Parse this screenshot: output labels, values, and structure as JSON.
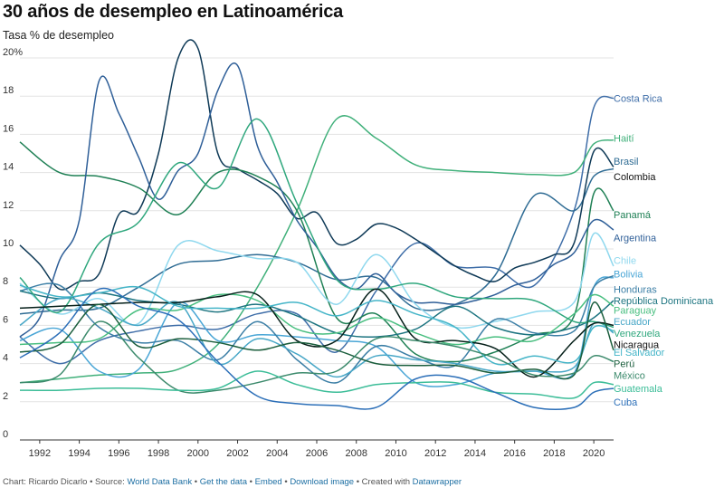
{
  "title": "30 años de desempleo en Latinoamérica",
  "subtitle": "Tasa % de desempleo",
  "footer": {
    "prefix": "Chart: Ricardo Dicarlo • Source: ",
    "source_link": "World Data Bank",
    "sep1": " • ",
    "get_data": "Get the data",
    "sep2": " • ",
    "embed": "Embed",
    "sep3": " • ",
    "download": "Download image",
    "sep4": " • Created with ",
    "tool": "Datawrapper"
  },
  "chart_data": {
    "type": "line",
    "xlim": [
      1991,
      2021
    ],
    "ylim": [
      0,
      20
    ],
    "xticks": [
      "1992",
      "1994",
      "1996",
      "1998",
      "2000",
      "2002",
      "2004",
      "2006",
      "2008",
      "2010",
      "2012",
      "2014",
      "2016",
      "2018",
      "2020"
    ],
    "yticks": [
      "0",
      "2",
      "4",
      "6",
      "8",
      "10",
      "12",
      "14",
      "16",
      "18",
      "20%"
    ],
    "grid": true,
    "legend": "inline-right",
    "series": [
      {
        "name": "Costa Rica",
        "color": "#3f6ea8",
        "label_y": 17.9,
        "x": [
          1991,
          1993,
          1995,
          1997,
          1999,
          2001,
          2003,
          2005,
          2007,
          2009,
          2011,
          2013,
          2015,
          2017,
          2019,
          2020,
          2021
        ],
        "y": [
          5.4,
          4.0,
          5.2,
          5.7,
          6.0,
          5.8,
          6.6,
          6.6,
          4.6,
          7.8,
          10.3,
          9.1,
          9.0,
          8.1,
          12.0,
          17.4,
          17.9
        ]
      },
      {
        "name": "Haití",
        "color": "#40b07a",
        "label_y": 15.8,
        "x": [
          1991,
          1993,
          1995,
          1997,
          1999,
          2001,
          2003,
          2005,
          2007,
          2009,
          2011,
          2013,
          2015,
          2017,
          2019,
          2020,
          2021
        ],
        "y": [
          3.0,
          3.2,
          3.4,
          3.5,
          3.7,
          5.0,
          8.0,
          12.0,
          16.8,
          15.8,
          14.4,
          14.1,
          14.0,
          13.9,
          14.0,
          15.5,
          15.7
        ]
      },
      {
        "name": "Brasil",
        "color": "#2f6c94",
        "label_y": 14.6,
        "x": [
          1991,
          1993,
          1995,
          1997,
          1999,
          2001,
          2003,
          2005,
          2007,
          2009,
          2011,
          2013,
          2015,
          2017,
          2019,
          2020,
          2021
        ],
        "y": [
          6.6,
          6.8,
          6.9,
          8.0,
          9.2,
          9.4,
          9.7,
          9.3,
          8.4,
          8.5,
          6.9,
          7.1,
          8.6,
          12.8,
          12.0,
          13.8,
          14.2
        ]
      },
      {
        "name": "Colombia",
        "color": "#0f3a57",
        "label_y": 13.8,
        "x": [
          1991,
          1992,
          1993,
          1994,
          1995,
          1996,
          1997,
          1998,
          1999,
          2000,
          2001,
          2002,
          2003,
          2004,
          2005,
          2006,
          2007,
          2008,
          2009,
          2010,
          2011,
          2012,
          2013,
          2014,
          2015,
          2016,
          2017,
          2018,
          2019,
          2020,
          2021
        ],
        "y": [
          10.2,
          9.2,
          7.9,
          8.3,
          8.7,
          11.8,
          12.0,
          15.0,
          20.0,
          20.5,
          15.0,
          14.2,
          13.6,
          12.9,
          11.6,
          11.9,
          10.3,
          10.5,
          11.3,
          11.1,
          10.5,
          9.8,
          9.1,
          8.6,
          8.3,
          9.0,
          9.3,
          9.7,
          10.3,
          15.1,
          14.3
        ]
      },
      {
        "name": "Panamá",
        "color": "#1f8055",
        "label_y": 11.8,
        "x": [
          1991,
          1993,
          1995,
          1997,
          1999,
          2001,
          2003,
          2005,
          2007,
          2009,
          2011,
          2013,
          2015,
          2017,
          2019,
          2020,
          2021
        ],
        "y": [
          15.6,
          14.0,
          13.8,
          13.2,
          11.8,
          14.0,
          13.8,
          12.0,
          6.4,
          6.6,
          4.5,
          4.1,
          4.6,
          5.5,
          6.5,
          12.9,
          12.0
        ]
      },
      {
        "name": "Argentina",
        "color": "#2f5f98",
        "label_y": 10.6,
        "x": [
          1991,
          1992,
          1993,
          1994,
          1995,
          1996,
          1997,
          1998,
          1999,
          2000,
          2001,
          2002,
          2003,
          2004,
          2005,
          2006,
          2007,
          2008,
          2009,
          2010,
          2011,
          2012,
          2013,
          2014,
          2015,
          2016,
          2017,
          2018,
          2019,
          2020,
          2021
        ],
        "y": [
          5.4,
          6.4,
          9.4,
          11.5,
          18.8,
          17.1,
          14.8,
          12.6,
          14.1,
          15.0,
          18.3,
          19.6,
          15.4,
          13.5,
          11.5,
          10.1,
          8.5,
          7.9,
          8.7,
          7.7,
          7.2,
          7.2,
          7.1,
          7.3,
          7.6,
          8.1,
          8.4,
          9.2,
          9.8,
          11.5,
          11.0
        ]
      },
      {
        "name": "Chile",
        "color": "#8fd8ee",
        "label_y": 9.4,
        "x": [
          1991,
          1993,
          1995,
          1997,
          1999,
          2001,
          2003,
          2005,
          2007,
          2009,
          2011,
          2013,
          2015,
          2017,
          2019,
          2020,
          2021
        ],
        "y": [
          8.2,
          6.6,
          7.4,
          6.1,
          10.2,
          9.9,
          9.5,
          9.3,
          7.1,
          9.7,
          7.1,
          5.9,
          6.2,
          6.7,
          7.2,
          10.8,
          9.1
        ]
      },
      {
        "name": "Bolivia",
        "color": "#4aa6d6",
        "label_y": 8.7,
        "x": [
          1991,
          1993,
          1995,
          1997,
          1999,
          2001,
          2003,
          2005,
          2007,
          2009,
          2011,
          2013,
          2015,
          2017,
          2019,
          2020,
          2021
        ],
        "y": [
          5.2,
          5.8,
          3.6,
          3.7,
          7.2,
          5.2,
          5.5,
          5.4,
          5.2,
          4.9,
          3.0,
          2.9,
          3.5,
          3.6,
          3.5,
          8.0,
          8.5
        ]
      },
      {
        "name": "Honduras",
        "color": "#3c7fa6",
        "label_y": 7.9,
        "x": [
          1991,
          1993,
          1995,
          1997,
          1999,
          2001,
          2003,
          2005,
          2007,
          2009,
          2011,
          2013,
          2015,
          2017,
          2019,
          2020,
          2021
        ],
        "y": [
          7.8,
          8.1,
          5.9,
          5.1,
          5.2,
          4.2,
          6.2,
          4.2,
          3.0,
          4.9,
          4.3,
          3.9,
          6.3,
          5.6,
          5.7,
          8.0,
          8.6
        ]
      },
      {
        "name": "República Dominicana",
        "color": "#1c7480",
        "label_y": 7.3,
        "x": [
          1991,
          1993,
          1995,
          1997,
          1999,
          2001,
          2003,
          2005,
          2007,
          2009,
          2011,
          2013,
          2015,
          2017,
          2019,
          2020,
          2021
        ],
        "y": [
          7.8,
          7.4,
          7.7,
          7.3,
          7.1,
          6.7,
          7.1,
          6.5,
          5.6,
          5.4,
          5.8,
          7.0,
          5.9,
          5.5,
          5.9,
          6.4,
          7.3
        ]
      },
      {
        "name": "Paraguay",
        "color": "#49bf80",
        "label_y": 6.8,
        "x": [
          1991,
          1993,
          1995,
          1997,
          1999,
          2001,
          2003,
          2005,
          2007,
          2009,
          2011,
          2013,
          2015,
          2017,
          2019,
          2020,
          2021
        ],
        "y": [
          5.0,
          5.1,
          5.3,
          6.8,
          6.8,
          7.6,
          7.3,
          5.8,
          5.6,
          6.4,
          5.6,
          5.0,
          5.4,
          5.2,
          6.6,
          7.6,
          7.0
        ]
      },
      {
        "name": "Ecuador",
        "color": "#48a7c7",
        "label_y": 6.2,
        "x": [
          1991,
          1993,
          1995,
          1997,
          1999,
          2001,
          2003,
          2005,
          2007,
          2009,
          2011,
          2013,
          2015,
          2017,
          2019,
          2020,
          2021
        ],
        "y": [
          6.0,
          7.4,
          6.9,
          6.0,
          7.2,
          4.0,
          5.3,
          4.5,
          3.3,
          4.4,
          4.2,
          4.0,
          3.6,
          3.6,
          3.8,
          6.1,
          5.6
        ]
      },
      {
        "name": "Venezuela",
        "color": "#2fa77d",
        "label_y": 5.6,
        "x": [
          1991,
          1993,
          1995,
          1997,
          1999,
          2001,
          2003,
          2005,
          2007,
          2009,
          2011,
          2013,
          2015,
          2017,
          2019,
          2020,
          2021
        ],
        "y": [
          8.5,
          6.7,
          10.3,
          11.4,
          14.5,
          13.2,
          16.8,
          12.4,
          8.4,
          7.9,
          8.2,
          7.5,
          7.4,
          7.3,
          6.2,
          6.2,
          5.9
        ]
      },
      {
        "name": "Nicaragua",
        "color": "#06201a",
        "label_y": 5.0,
        "x": [
          1991,
          1993,
          1995,
          1997,
          1999,
          2001,
          2003,
          2005,
          2007,
          2009,
          2011,
          2013,
          2015,
          2017,
          2019,
          2020,
          2021
        ],
        "y": [
          6.9,
          7.0,
          7.1,
          7.2,
          7.2,
          7.5,
          7.6,
          5.2,
          5.2,
          7.9,
          5.3,
          5.2,
          4.8,
          3.3,
          5.2,
          6.1,
          6.0
        ]
      },
      {
        "name": "El Salvador",
        "color": "#45b5c8",
        "label_y": 4.6,
        "x": [
          1991,
          1993,
          1995,
          1997,
          1999,
          2001,
          2003,
          2005,
          2007,
          2009,
          2011,
          2013,
          2015,
          2017,
          2019,
          2020,
          2021
        ],
        "y": [
          8.1,
          7.5,
          7.7,
          8.0,
          7.0,
          6.9,
          6.9,
          7.2,
          6.5,
          7.3,
          6.6,
          5.9,
          4.0,
          4.4,
          4.1,
          5.9,
          5.7
        ]
      },
      {
        "name": "Perú",
        "color": "#1b5e3d",
        "label_y": 4.0,
        "x": [
          1991,
          1993,
          1995,
          1997,
          1999,
          2001,
          2003,
          2005,
          2007,
          2009,
          2011,
          2013,
          2015,
          2017,
          2019,
          2020,
          2021
        ],
        "y": [
          4.6,
          5.0,
          7.1,
          4.9,
          5.3,
          5.1,
          4.7,
          5.1,
          4.7,
          4.0,
          3.9,
          3.9,
          3.5,
          3.7,
          3.4,
          7.2,
          4.7
        ]
      },
      {
        "name": "México",
        "color": "#3c8a6c",
        "label_y": 3.4,
        "x": [
          1991,
          1993,
          1995,
          1997,
          1999,
          2001,
          2003,
          2005,
          2007,
          2009,
          2011,
          2013,
          2015,
          2017,
          2019,
          2020,
          2021
        ],
        "y": [
          3.0,
          3.4,
          6.2,
          4.3,
          2.6,
          2.6,
          3.0,
          3.5,
          3.6,
          5.3,
          5.2,
          4.9,
          4.3,
          3.4,
          3.5,
          4.4,
          4.1
        ]
      },
      {
        "name": "Guatemala",
        "color": "#3cbd98",
        "label_y": 2.7,
        "x": [
          1991,
          1993,
          1995,
          1997,
          1999,
          2001,
          2003,
          2005,
          2007,
          2009,
          2011,
          2013,
          2015,
          2017,
          2019,
          2020,
          2021
        ],
        "y": [
          2.6,
          2.6,
          2.7,
          2.7,
          2.6,
          2.7,
          3.6,
          2.9,
          2.5,
          2.9,
          3.0,
          3.0,
          2.5,
          2.4,
          2.2,
          3.0,
          2.9
        ]
      },
      {
        "name": "Cuba",
        "color": "#2c6fb8",
        "label_y": 2.0,
        "x": [
          1991,
          1993,
          1995,
          1997,
          1999,
          2001,
          2003,
          2005,
          2007,
          2009,
          2011,
          2013,
          2015,
          2017,
          2019,
          2020,
          2021
        ],
        "y": [
          4.3,
          5.6,
          7.9,
          7.0,
          6.3,
          4.1,
          2.3,
          1.9,
          1.8,
          1.7,
          3.2,
          3.3,
          2.5,
          1.7,
          1.7,
          2.5,
          2.7
        ]
      }
    ]
  }
}
